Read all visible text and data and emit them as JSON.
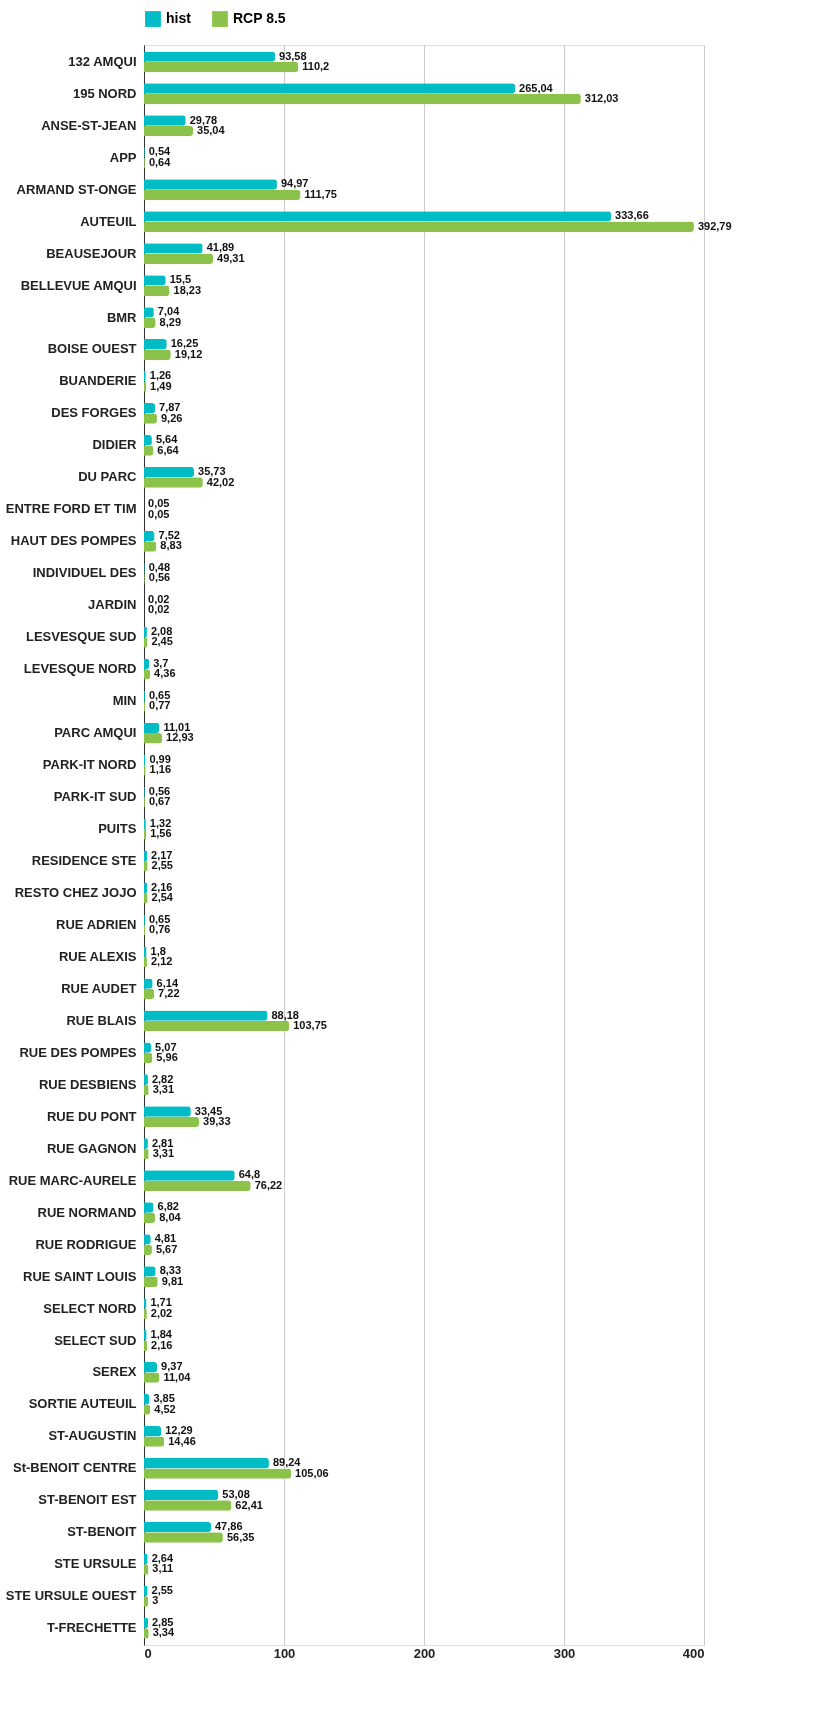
{
  "chart_data": {
    "type": "bar",
    "orientation": "horizontal",
    "categories": [
      "132 AMQUI",
      "195 NORD",
      "ANSE-ST-JEAN",
      "APP",
      "ARMAND ST-ONGE",
      "AUTEUIL",
      "BEAUSEJOUR",
      "BELLEVUE AMQUI",
      "BMR",
      "BOISE OUEST",
      "BUANDERIE",
      "DES FORGES",
      "DIDIER",
      "DU PARC",
      "ENTRE FORD ET TIM",
      "HAUT DES POMPES",
      "INDIVIDUEL DES",
      "JARDIN",
      "LESVESQUE SUD",
      "LEVESQUE NORD",
      "MIN",
      "PARC AMQUI",
      "PARK-IT NORD",
      "PARK-IT SUD",
      "PUITS",
      "RESIDENCE STE",
      "RESTO CHEZ JOJO",
      "RUE ADRIEN",
      "RUE ALEXIS",
      "RUE AUDET",
      "RUE BLAIS",
      "RUE DES POMPES",
      "RUE DESBIENS",
      "RUE DU PONT",
      "RUE GAGNON",
      "RUE MARC-AURELE",
      "RUE NORMAND",
      "RUE RODRIGUE",
      "RUE SAINT LOUIS",
      "SELECT NORD",
      "SELECT SUD",
      "SEREX",
      "SORTIE AUTEUIL",
      "ST-AUGUSTIN",
      "St-BENOIT CENTRE",
      "ST-BENOIT EST",
      "ST-BENOIT",
      "STE URSULE",
      "STE URSULE OUEST",
      "T-FRECHETTE"
    ],
    "series": [
      {
        "name": "hist",
        "color": "#00bcc6",
        "values": [
          93.58,
          265.04,
          29.78,
          0.54,
          94.97,
          333.66,
          41.89,
          15.5,
          7.04,
          16.25,
          1.26,
          7.87,
          5.64,
          35.73,
          0.05,
          7.52,
          0.48,
          0.02,
          2.08,
          3.7,
          0.65,
          11.01,
          0.99,
          0.56,
          1.32,
          2.17,
          2.16,
          0.65,
          1.8,
          6.14,
          88.18,
          5.07,
          2.82,
          33.45,
          2.81,
          64.8,
          6.82,
          4.81,
          8.33,
          1.71,
          1.84,
          9.37,
          3.85,
          12.29,
          89.24,
          53.08,
          47.86,
          2.64,
          2.55,
          2.85
        ],
        "value_labels": [
          "93,58",
          "265,04",
          "29,78",
          "0,54",
          "94,97",
          "333,66",
          "41,89",
          "15,5",
          "7,04",
          "16,25",
          "1,26",
          "7,87",
          "5,64",
          "35,73",
          "0,05",
          "7,52",
          "0,48",
          "0,02",
          "2,08",
          "3,7",
          "0,65",
          "11,01",
          "0,99",
          "0,56",
          "1,32",
          "2,17",
          "2,16",
          "0,65",
          "1,8",
          "6,14",
          "88,18",
          "5,07",
          "2,82",
          "33,45",
          "2,81",
          "64,8",
          "6,82",
          "4,81",
          "8,33",
          "1,71",
          "1,84",
          "9,37",
          "3,85",
          "12,29",
          "89,24",
          "53,08",
          "47,86",
          "2,64",
          "2,55",
          "2,85"
        ]
      },
      {
        "name": "RCP 8.5",
        "color": "#8bc34a",
        "values": [
          110.2,
          312.03,
          35.04,
          0.64,
          111.75,
          392.79,
          49.31,
          18.23,
          8.29,
          19.12,
          1.49,
          9.26,
          6.64,
          42.02,
          0.05,
          8.83,
          0.56,
          0.02,
          2.45,
          4.36,
          0.77,
          12.93,
          1.16,
          0.67,
          1.56,
          2.55,
          2.54,
          0.76,
          2.12,
          7.22,
          103.75,
          5.96,
          3.31,
          39.33,
          3.31,
          76.22,
          8.04,
          5.67,
          9.81,
          2.02,
          2.16,
          11.04,
          4.52,
          14.46,
          105.06,
          62.41,
          56.35,
          3.11,
          3,
          3.34
        ],
        "value_labels": [
          "110,2",
          "312,03",
          "35,04",
          "0,64",
          "111,75",
          "392,79",
          "49,31",
          "18,23",
          "8,29",
          "19,12",
          "1,49",
          "9,26",
          "6,64",
          "42,02",
          "0,05",
          "8,83",
          "0,56",
          "0,02",
          "2,45",
          "4,36",
          "0,77",
          "12,93",
          "1,16",
          "0,67",
          "1,56",
          "2,55",
          "2,54",
          "0,76",
          "2,12",
          "7,22",
          "103,75",
          "5,96",
          "3,31",
          "39,33",
          "3,31",
          "76,22",
          "8,04",
          "5,67",
          "9,81",
          "2,02",
          "2,16",
          "11,04",
          "4,52",
          "14,46",
          "105,06",
          "62,41",
          "56,35",
          "3,11",
          "3",
          "3,34"
        ]
      }
    ],
    "xlim": [
      0,
      400
    ],
    "xticks": [
      0,
      100,
      200,
      300,
      400
    ],
    "grid": "x",
    "legend": "top"
  }
}
